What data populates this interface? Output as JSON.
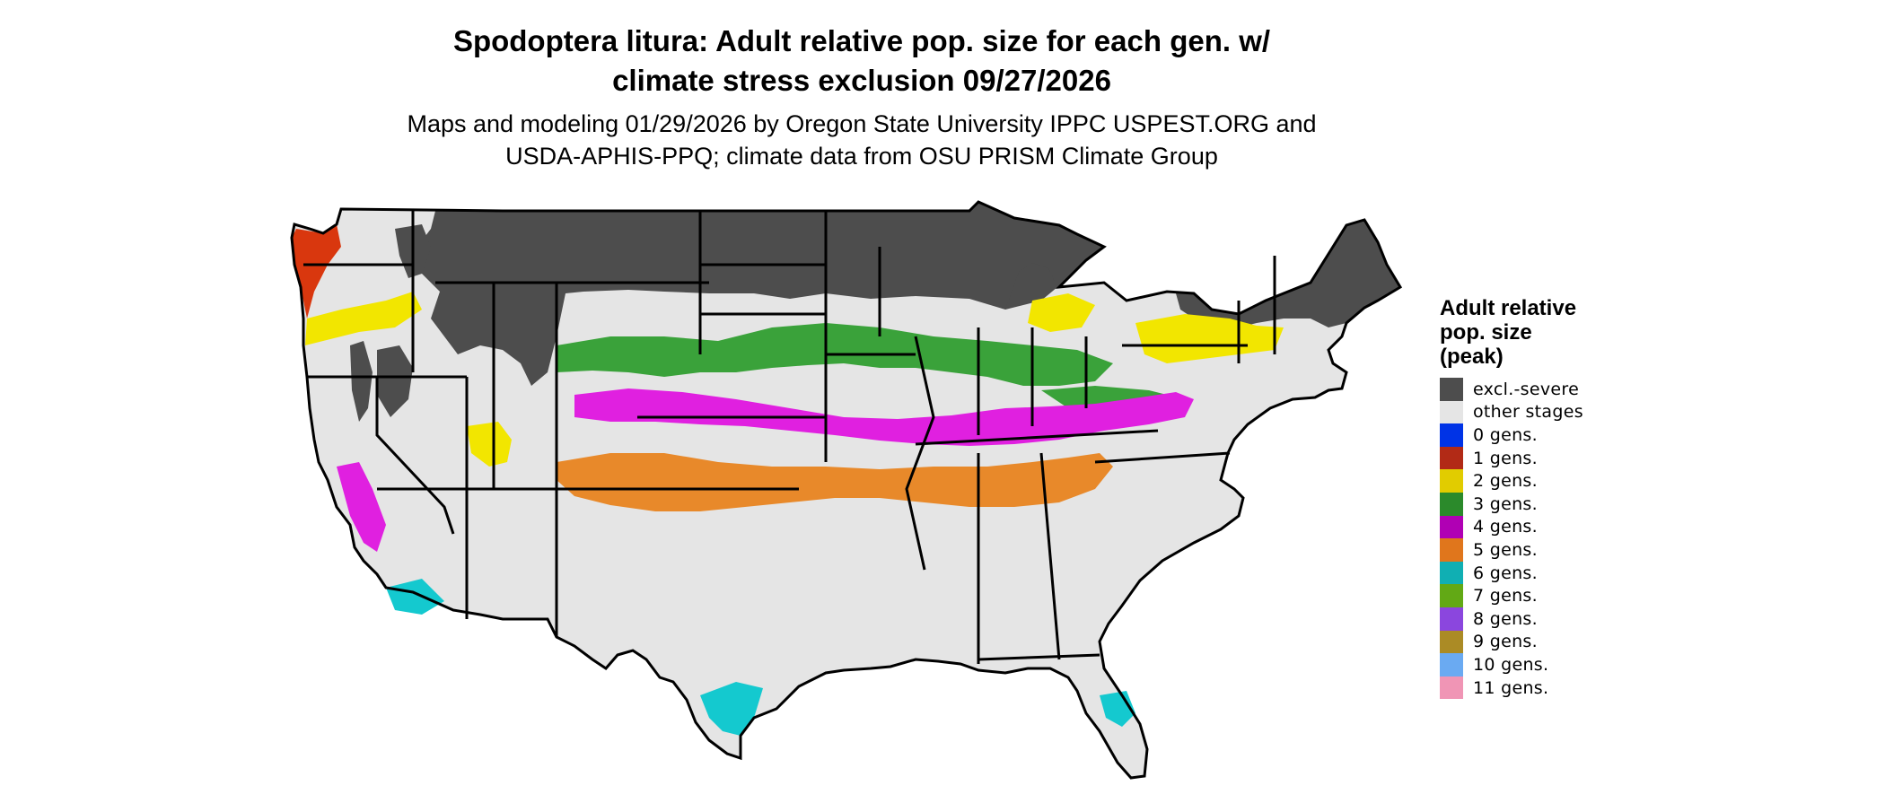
{
  "title_line1": "Spodoptera litura: Adult relative pop. size for each gen. w/",
  "title_line2": "climate stress exclusion 09/27/2026",
  "subtitle_line1": "Maps and modeling 01/29/2026 by Oregon State University IPPC USPEST.ORG and",
  "subtitle_line2": "USDA-APHIS-PPQ; climate data from OSU PRISM Climate Group",
  "legend": {
    "title_lines": [
      "Adult relative",
      "pop. size",
      "(peak)"
    ],
    "items": [
      {
        "label": "excl.-severe",
        "color": "#4d4d4d"
      },
      {
        "label": "other stages",
        "color": "#e5e5e5"
      },
      {
        "label": "0 gens.",
        "color": "#0033e6"
      },
      {
        "label": "1 gens.",
        "color": "#b22a16"
      },
      {
        "label": "2 gens.",
        "color": "#e1cc00"
      },
      {
        "label": "3 gens.",
        "color": "#2b8a2b"
      },
      {
        "label": "4 gens.",
        "color": "#b000b4"
      },
      {
        "label": "5 gens.",
        "color": "#e0761c"
      },
      {
        "label": "6 gens.",
        "color": "#10afb3"
      },
      {
        "label": "7 gens.",
        "color": "#62a915"
      },
      {
        "label": "8 gens.",
        "color": "#8b46de"
      },
      {
        "label": "9 gens.",
        "color": "#ab8b25"
      },
      {
        "label": "10 gens.",
        "color": "#6aaaf2"
      },
      {
        "label": "11 gens.",
        "color": "#f095b5"
      }
    ]
  },
  "map_colors": {
    "excluded": "#4d4d4d",
    "other": "#e5e5e5",
    "gen1": "#d9370e",
    "gen2": "#f2e600",
    "gen3": "#3aa23a",
    "gen4": "#e020e0",
    "gen5": "#e8892a",
    "gen6": "#14c9cf",
    "gen7": "#62a915",
    "border": "#000000"
  }
}
